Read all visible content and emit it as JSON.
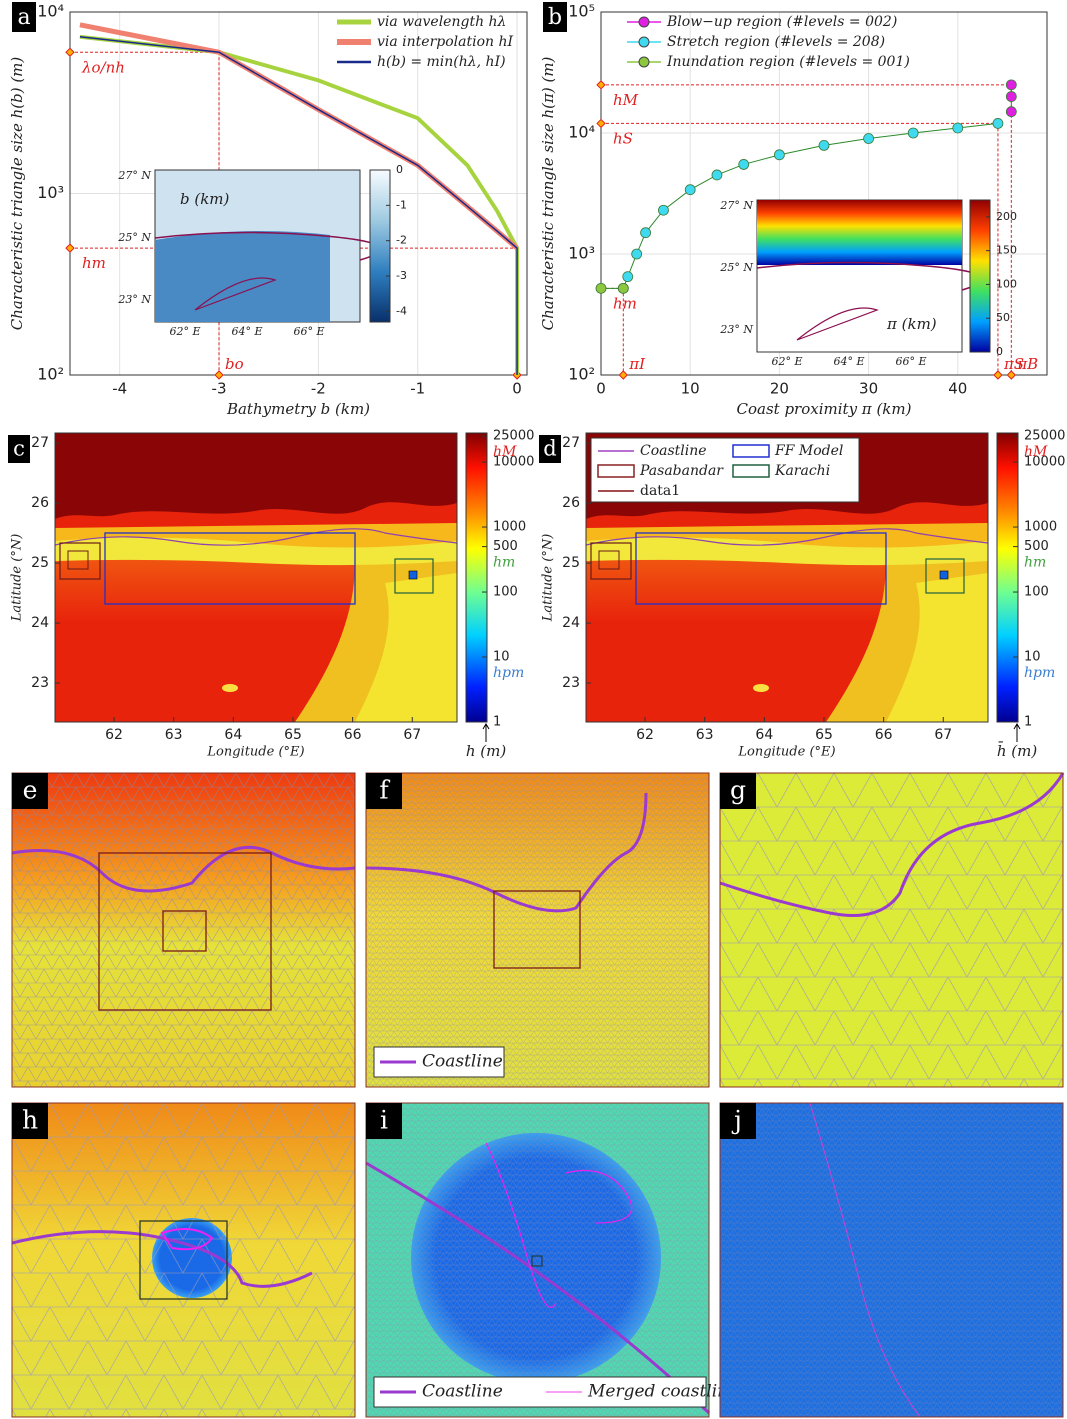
{
  "chart_data": [
    {
      "type": "line",
      "letter": "a",
      "log_y": true,
      "grid": true,
      "xlabel": "Bathymetry  b (km)",
      "ylabel": "Characteristic triangle size  h(b) (m)",
      "xlim": [
        -4.5,
        0.1
      ],
      "ylim": [
        100,
        10000
      ],
      "xticks": [
        -4,
        -3,
        -2,
        -1,
        0
      ],
      "yticks": [
        {
          "value": 100,
          "label": "10²"
        },
        {
          "value": 1000,
          "label": "10³"
        },
        {
          "value": 10000,
          "label": "10⁴"
        }
      ],
      "legend": "upper right",
      "series": [
        {
          "name": "via wavelength hλ",
          "color": "#a6d33e",
          "width": 4,
          "x": [
            -4.4,
            -3,
            -2,
            -1,
            -0.5,
            -0.2,
            0,
            0
          ],
          "values": [
            7300,
            6000,
            4200,
            2600,
            1430,
            800,
            500,
            100
          ]
        },
        {
          "name": "via interpolation hI",
          "color": "#f08070",
          "width": 5,
          "x": [
            -4.4,
            -3,
            -2,
            -1,
            -0.5,
            -0.2,
            0,
            0
          ],
          "values": [
            8500,
            6000,
            2900,
            1430,
            850,
            620,
            500,
            null
          ]
        },
        {
          "name": "h(b) = min(hλ, hI)",
          "color": "#1a2a8a",
          "width": 1.5,
          "x": [
            -4.4,
            -3,
            -2,
            -1,
            -0.5,
            -0.2,
            0,
            0
          ],
          "values": [
            7300,
            6000,
            2900,
            1430,
            850,
            620,
            500,
            100
          ]
        }
      ],
      "guides": [
        {
          "label": "λo/nh",
          "xlabel": "bo",
          "x": -3,
          "y": 6000
        },
        {
          "label": "hm",
          "x": 0,
          "y": 500
        }
      ],
      "inset": {
        "title": "b (km)",
        "lat_labels": [
          "27° N",
          "25° N",
          "23° N"
        ],
        "lon_labels": [
          "62° E",
          "64° E",
          "66° E"
        ],
        "clim": [
          -4.3,
          0
        ],
        "colorbar_ticks": [
          0,
          -1,
          -2,
          -3,
          -4
        ],
        "colors": [
          "#08306b",
          "#2f7fc0",
          "#9ecae1",
          "#f7fbff"
        ]
      }
    },
    {
      "type": "line",
      "letter": "b",
      "log_y": true,
      "grid": true,
      "xlabel": "Coast proximity  π (km)",
      "ylabel": "Characteristic triangle size  h(π) (m)",
      "xlim": [
        0,
        50
      ],
      "ylim": [
        100,
        100000
      ],
      "xticks": [
        0,
        10,
        20,
        30,
        40
      ],
      "yticks": [
        {
          "value": 100,
          "label": "10²"
        },
        {
          "value": 1000,
          "label": "10³"
        },
        {
          "value": 10000,
          "label": "10⁴"
        },
        {
          "value": 100000,
          "label": "10⁵"
        }
      ],
      "legend": "upper right",
      "series": [
        {
          "name": "Blow−up    region (#levels = 002)",
          "color": "#e020e0",
          "marker": true,
          "x": [
            46,
            46,
            46
          ],
          "values": [
            15000,
            20000,
            25000
          ]
        },
        {
          "name": "Stretch      region (#levels = 208)",
          "color": "#3fd9f0",
          "marker": true,
          "x": [
            2.5,
            3,
            4,
            5,
            7,
            10,
            13,
            16,
            20,
            25,
            30,
            35,
            40,
            44.5
          ],
          "values": [
            520,
            650,
            1000,
            1500,
            2300,
            3400,
            4500,
            5500,
            6600,
            7900,
            9000,
            10000,
            11000,
            12000
          ]
        },
        {
          "name": "Inundation region (#levels = 001)",
          "color": "#8dc63f",
          "marker": true,
          "x": [
            0,
            2.5
          ],
          "values": [
            520,
            520
          ]
        }
      ],
      "guides": [
        {
          "label": "hM",
          "xlabel": "πB",
          "x": 46,
          "y": 25000
        },
        {
          "label": "hS",
          "xlabel": "πS",
          "x": 44.5,
          "y": 12000
        },
        {
          "label": "hm",
          "xlabel": "πI",
          "x": 2.5,
          "y": 520
        }
      ],
      "inset": {
        "title": "π (km)",
        "lat_labels": [
          "27° N",
          "25° N",
          "23° N"
        ],
        "lon_labels": [
          "62° E",
          "64° E",
          "66° E"
        ],
        "clim": [
          0,
          225
        ],
        "colorbar_ticks": [
          0,
          50,
          100,
          150,
          200
        ],
        "colors": [
          "#0000a0",
          "#00a0ff",
          "#40e060",
          "#ffe000",
          "#ff4000",
          "#900000"
        ]
      }
    }
  ],
  "maps": [
    {
      "letter": "c",
      "xlabel": "Longitude (°E)",
      "ylabel": "Latitude (°N)",
      "xlim": [
        61.01,
        67.75
      ],
      "ylim": [
        22.35,
        27.17
      ],
      "xticks": [
        62,
        63,
        64,
        65,
        66,
        67
      ],
      "yticks": [
        23,
        24,
        25,
        26,
        27
      ],
      "colorbar": {
        "label": "h (m)",
        "clim": [
          1,
          28000
        ],
        "ticks": [
          1,
          10,
          100,
          500,
          1000,
          10000,
          25000
        ],
        "markers": [
          {
            "label": "hM",
            "value": 25000,
            "color": "#e02020"
          },
          {
            "label": "hm",
            "value": 500,
            "color": "#40a040"
          },
          {
            "label": "hpm",
            "value": 10,
            "color": "#3a7fd0"
          }
        ]
      }
    },
    {
      "letter": "d",
      "xlabel": "Longitude (°E)",
      "ylabel": "Latitude (°N)",
      "xlim": [
        61.01,
        67.75
      ],
      "ylim": [
        22.35,
        27.17
      ],
      "xticks": [
        62,
        63,
        64,
        65,
        66,
        67
      ],
      "yticks": [
        23,
        24,
        25,
        26,
        27
      ],
      "legend": [
        {
          "name": "Coastline",
          "color": "#a040c0"
        },
        {
          "name": "FF Model",
          "color": "#2030d0"
        },
        {
          "name": "Pasabandar",
          "color": "#8a2020"
        },
        {
          "name": "Karachi",
          "color": "#206040"
        },
        {
          "name": "data1",
          "color": "#8a1010"
        }
      ],
      "colorbar": {
        "label": "h̄ (m)",
        "clim": [
          1,
          28000
        ],
        "ticks": [
          1,
          10,
          100,
          500,
          1000,
          10000,
          25000
        ],
        "markers": [
          {
            "label": "hM",
            "value": 25000,
            "color": "#e02020"
          },
          {
            "label": "hm",
            "value": 500,
            "color": "#40a040"
          },
          {
            "label": "hpm",
            "value": 10,
            "color": "#3a7fd0"
          }
        ]
      }
    }
  ],
  "mesh_panels": [
    {
      "letter": "e"
    },
    {
      "letter": "f",
      "legend": [
        "Coastline"
      ]
    },
    {
      "letter": "g"
    },
    {
      "letter": "h"
    },
    {
      "letter": "i",
      "legend": [
        "Coastline",
        "Merged coastline"
      ]
    },
    {
      "letter": "j"
    }
  ]
}
